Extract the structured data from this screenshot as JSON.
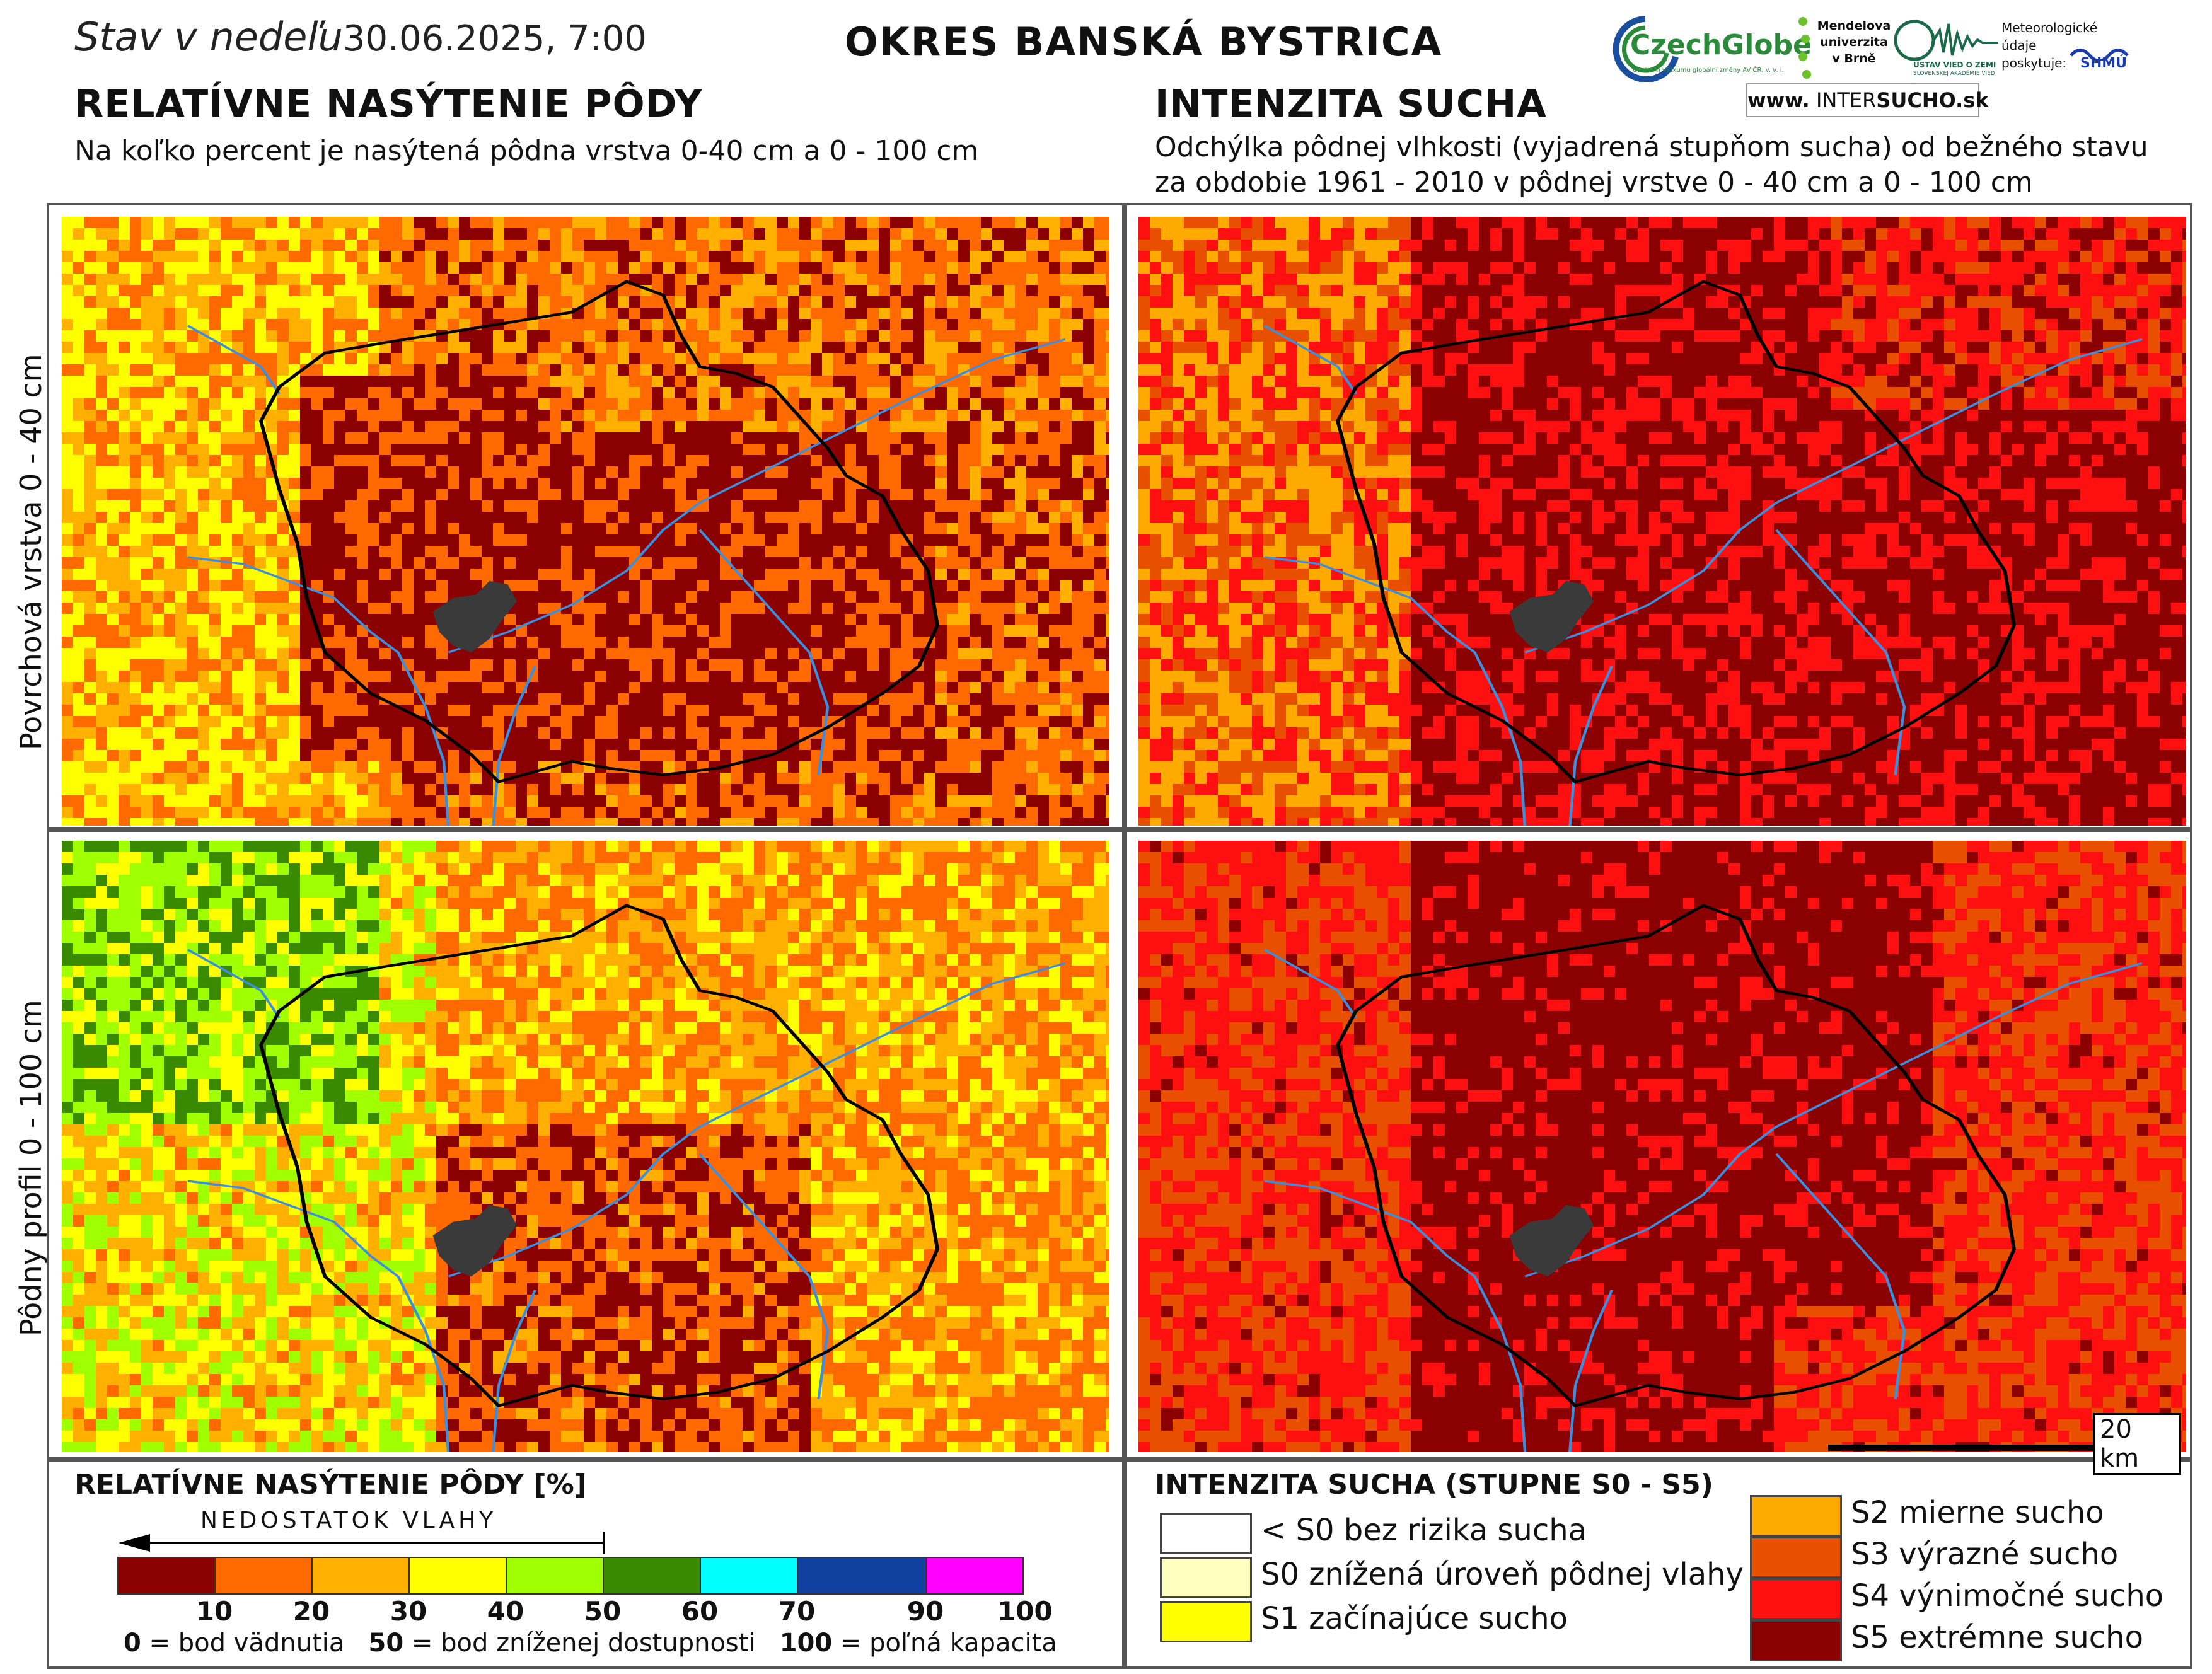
{
  "header": {
    "date_prefix": "Stav v nedeľu",
    "date": "30.06.2025, 7:00",
    "region": "OKRES  BANSKÁ BYSTRICA"
  },
  "logos": {
    "czechglobe": "CzechGlobe",
    "czechglobe_sub": "Centrum výzkumu globální změny AV ČR, v. v. i.",
    "mendel": "Mendelova univerzita v Brně",
    "uvz": "ÚSTAV VIED O ZEMI",
    "uvz_sub": "SLOVENSKEJ AKADÉMIE VIED",
    "meteo": "Meteorologické údaje poskytuje:",
    "shmu": "SHMÚ",
    "www_prefix": "www.",
    "www_inter": "INTER",
    "www_sucho": "SUCHO",
    "www_suffix": ".sk"
  },
  "left_section": {
    "title": "RELATÍVNE NASÝTENIE PÔDY",
    "subtitle": "Na koľko percent je nasýtená pôdna vrstva 0-40 cm a 0 - 100 cm"
  },
  "right_section": {
    "title": "INTENZITA SUCHA",
    "subtitle_line1": "Odchýlka pôdnej vlhkosti (vyjadrená stupňom sucha) od bežného stavu",
    "subtitle_line2": "za obdobie 1961 - 2010 v pôdnej vrstve 0 - 40 cm a 0 - 100 cm"
  },
  "row_labels": {
    "top": "Povrchová vrstva 0 - 40 cm",
    "bottom": "Pôdny profil 0 - 100 cm"
  },
  "scale_bar": "20 km",
  "colorbar": {
    "title": "RELATÍVNE NASÝTENIE PÔDY [%]",
    "deficit_label": "NEDOSTATOK VLAHY",
    "colors": [
      "#8b0000",
      "#ff6a00",
      "#ffb000",
      "#ffff00",
      "#a0ff00",
      "#3a8a00",
      "#00ffff",
      "#1040a0",
      "#ff00ff"
    ],
    "ticks": [
      "10",
      "20",
      "30",
      "40",
      "50",
      "60",
      "70",
      "90",
      "100"
    ],
    "footnote_0_num": "0",
    "footnote_0_txt": "= bod vädnutia",
    "footnote_50_num": "50",
    "footnote_50_txt": "= bod zníženej dostupnosti",
    "footnote_100_num": "100",
    "footnote_100_txt": "= poľná kapacita"
  },
  "drought_legend": {
    "title": "INTENZITA SUCHA (STUPNE S0 - S5)",
    "items": [
      {
        "label": "< S0 bez rizika sucha",
        "color": "#ffffff"
      },
      {
        "label": "S0 znížená úroveň pôdnej vlahy",
        "color": "#ffffc0"
      },
      {
        "label": "S1 začínajúce sucho",
        "color": "#ffff00"
      },
      {
        "label": "S2 mierne sucho",
        "color": "#ffaa00"
      },
      {
        "label": "S3 výrazné sucho",
        "color": "#e85000"
      },
      {
        "label": "S4 výnimočné sucho",
        "color": "#ff1010"
      },
      {
        "label": "S5 extrémne sucho",
        "color": "#8b0000"
      }
    ]
  },
  "map_colors": {
    "boundary": "#000000",
    "river": "#3a8fe0",
    "city": "#3a3a3a"
  }
}
